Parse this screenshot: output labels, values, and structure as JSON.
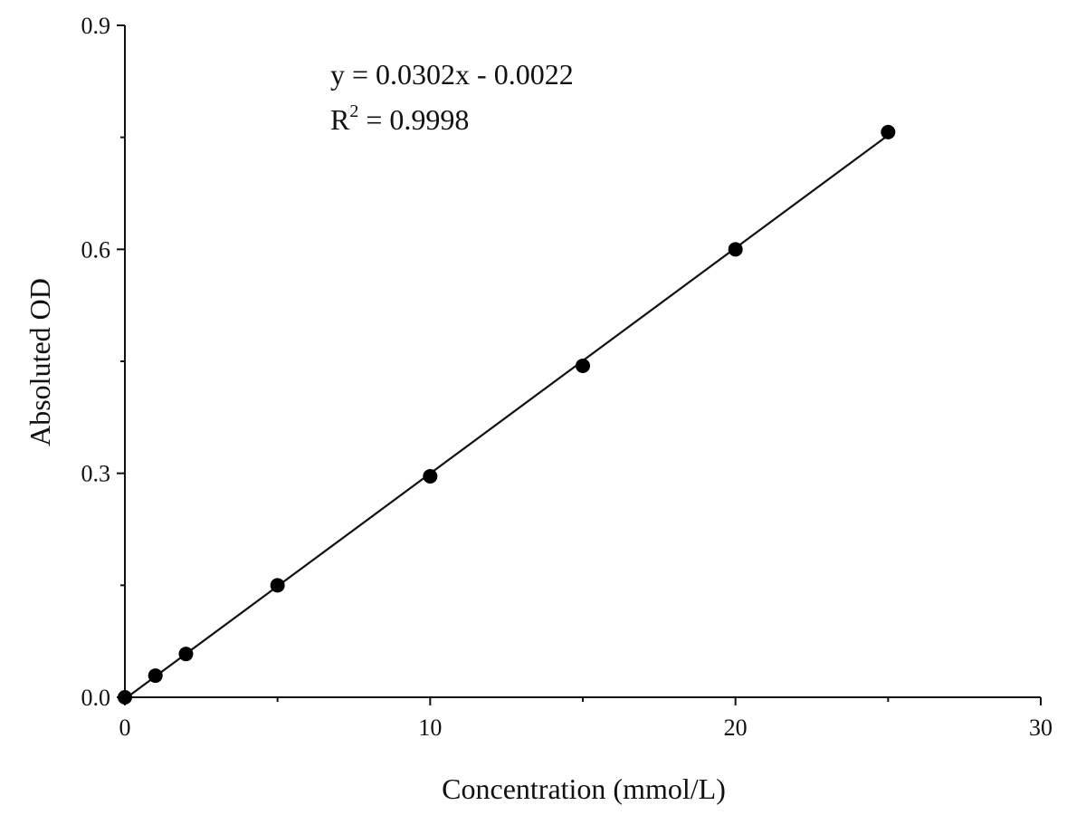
{
  "chart_data": {
    "type": "scatter",
    "title": "",
    "xlabel": "Concentration (mmol/L)",
    "ylabel": "Absoluted OD",
    "xlim": [
      0,
      30
    ],
    "ylim": [
      0,
      0.9
    ],
    "x_ticks": [
      0,
      10,
      20,
      30
    ],
    "x_tick_labels": [
      "0",
      "10",
      "20",
      "30"
    ],
    "x_minor_ticks": [
      5,
      15,
      25
    ],
    "y_ticks": [
      0,
      0.3,
      0.6,
      0.9
    ],
    "y_tick_labels": [
      "0.0",
      "0.3",
      "0.6",
      "0.9"
    ],
    "y_minor_ticks": [
      0.15,
      0.45,
      0.75
    ],
    "grid": false,
    "series": [
      {
        "x": [
          0,
          1,
          2,
          5,
          10,
          15,
          20,
          25
        ],
        "y": [
          0.0,
          0.029,
          0.058,
          0.15,
          0.296,
          0.444,
          0.6,
          0.757
        ],
        "color": "#000000",
        "marker": "circle"
      }
    ],
    "fit": {
      "slope": 0.0302,
      "intercept": -0.0022,
      "x_range": [
        0,
        25
      ],
      "color": "#111111"
    },
    "annotations": {
      "equation": "y = 0.0302x - 0.0022",
      "r2_prefix": "R",
      "r2_superscript": "2",
      "r2_value": " = 0.9998"
    }
  }
}
